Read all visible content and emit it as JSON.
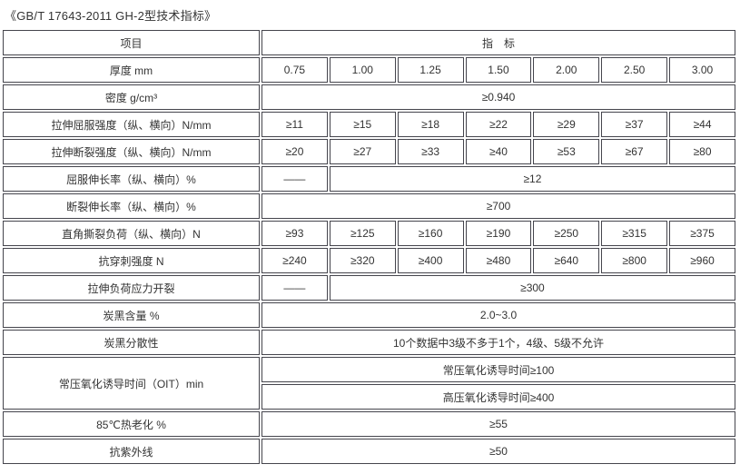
{
  "title": "《GB/T 17643-2011 GH-2型技术指标》",
  "table": {
    "header": {
      "item": "项目",
      "indicator": "指　标"
    },
    "rows": [
      {
        "label": "厚度 mm",
        "cells": [
          "0.75",
          "1.00",
          "1.25",
          "1.50",
          "2.00",
          "2.50",
          "3.00"
        ]
      },
      {
        "label": "密度 g/cm³",
        "cells": [
          "≥0.940"
        ]
      },
      {
        "label": "拉伸屈服强度（纵、横向）N/mm",
        "cells": [
          "≥11",
          "≥15",
          "≥18",
          "≥22",
          "≥29",
          "≥37",
          "≥44"
        ]
      },
      {
        "label": "拉伸断裂强度（纵、横向）N/mm",
        "cells": [
          "≥20",
          "≥27",
          "≥33",
          "≥40",
          "≥53",
          "≥67",
          "≥80"
        ]
      },
      {
        "label": "屈服伸长率（纵、横向）%",
        "cells": [
          "——",
          "≥12"
        ]
      },
      {
        "label": "断裂伸长率（纵、横向）%",
        "cells": [
          "≥700"
        ]
      },
      {
        "label": "直角撕裂负荷（纵、横向）N",
        "cells": [
          "≥93",
          "≥125",
          "≥160",
          "≥190",
          "≥250",
          "≥315",
          "≥375"
        ]
      },
      {
        "label": "抗穿刺强度 N",
        "cells": [
          "≥240",
          "≥320",
          "≥400",
          "≥480",
          "≥640",
          "≥800",
          "≥960"
        ]
      },
      {
        "label": "拉伸负荷应力开裂",
        "cells": [
          "——",
          "≥300"
        ]
      },
      {
        "label": "炭黑含量 %",
        "cells": [
          "2.0~3.0"
        ]
      },
      {
        "label": "炭黑分散性",
        "cells": [
          "10个数据中3级不多于1个，4级、5级不允许"
        ]
      },
      {
        "label": "常压氧化诱导时间（OIT）min",
        "cells": [
          "常压氧化诱导时间≥100",
          "高压氧化诱导时间≥400"
        ]
      },
      {
        "label": "85℃热老化 %",
        "cells": [
          "≥55"
        ]
      },
      {
        "label": "抗紫外线",
        "cells": [
          "≥50"
        ]
      }
    ]
  }
}
